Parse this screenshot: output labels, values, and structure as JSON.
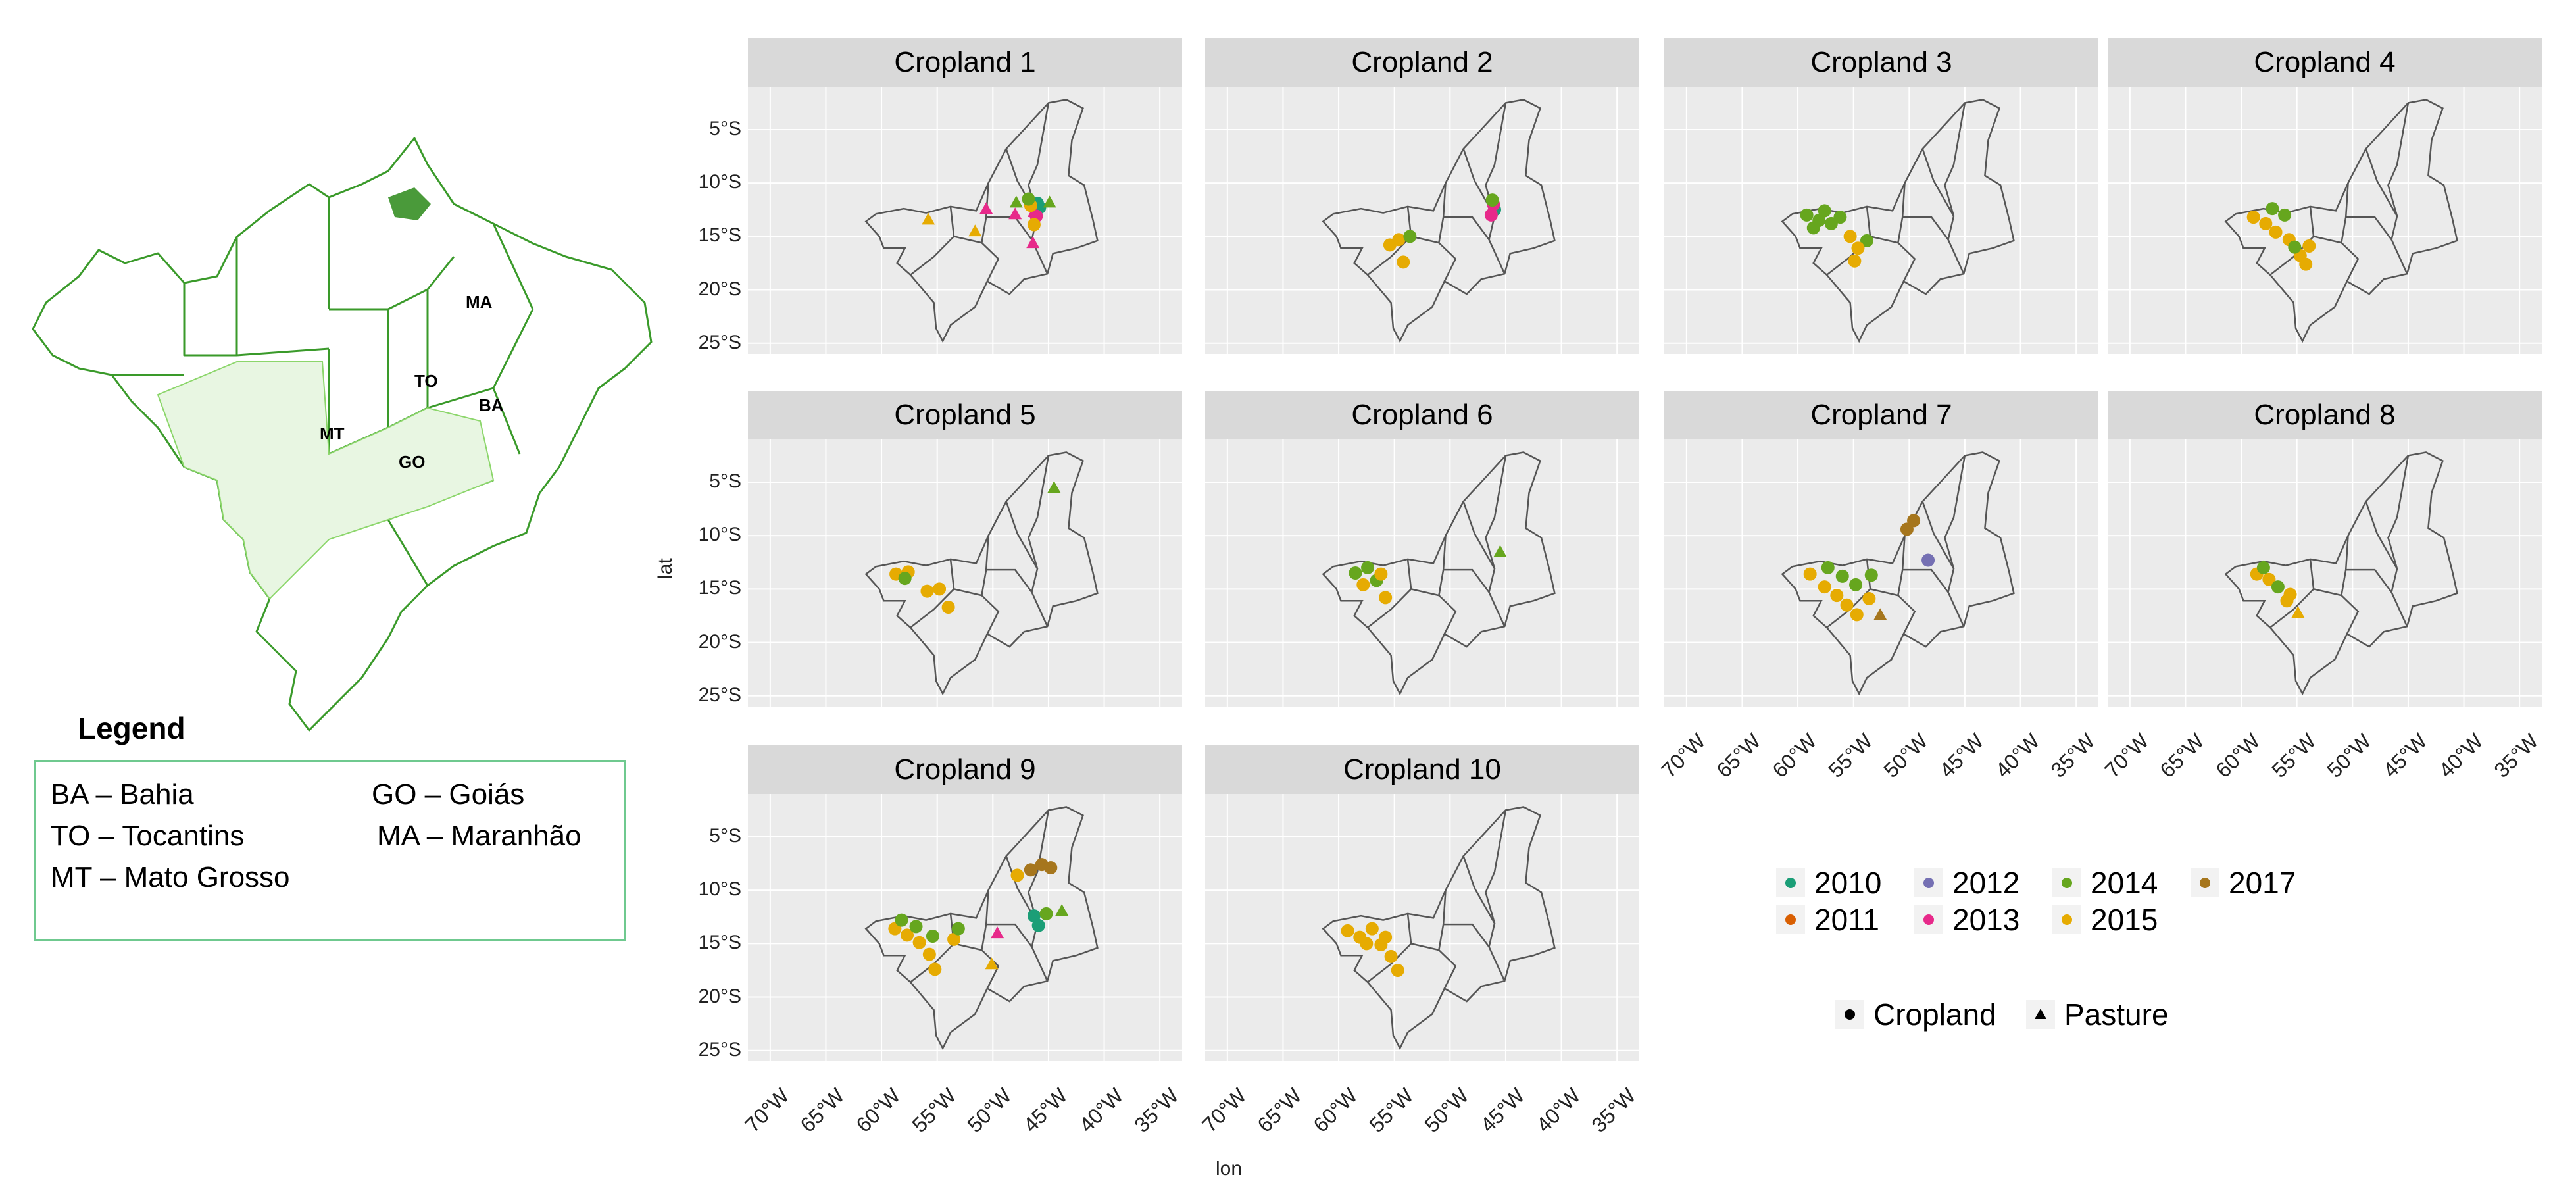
{
  "overview_map": {
    "state_labels": [
      "MA",
      "TO",
      "BA",
      "MT",
      "GO"
    ],
    "outline_color": "#3a9a2a",
    "highlight_color": "#8cd66b"
  },
  "legend": {
    "title": "Legend",
    "entries": [
      "BA – Bahia",
      "GO – Goiás",
      "TO – Tocantins",
      "MA – Maranhão",
      "MT – Mato Grosso"
    ]
  },
  "facets": {
    "titles": [
      "Cropland 1",
      "Cropland 2",
      "Cropland 3",
      "Cropland 4",
      "Cropland 5",
      "Cropland 6",
      "Cropland 7",
      "Cropland 8",
      "Cropland 9",
      "Cropland 10"
    ],
    "lat_ticks": [
      "5°S",
      "10°S",
      "15°S",
      "20°S",
      "25°S"
    ],
    "lon_ticks": [
      "70°W",
      "65°W",
      "60°W",
      "55°W",
      "50°W",
      "45°W",
      "40°W",
      "35°W"
    ],
    "xlabel": "lon",
    "ylabel": "lat"
  },
  "chart_data": {
    "type": "scatter",
    "x_field": "lon",
    "y_field": "lat",
    "xlim": [
      -72,
      -33
    ],
    "ylim": [
      -26,
      -1
    ],
    "year_colors": {
      "2010": "#1b9e77",
      "2011": "#d95f02",
      "2012": "#7570b3",
      "2013": "#e7298a",
      "2014": "#66a61e",
      "2015": "#e6ab02",
      "2017": "#a6761d"
    },
    "years": [
      "2010",
      "2012",
      "2014",
      "2017",
      "2011",
      "2013",
      "2015"
    ],
    "shapes": [
      "Cropland",
      "Pasture"
    ],
    "panels": [
      {
        "title": "Cropland 1",
        "points": [
          {
            "lon": -45.8,
            "lat": -12.3,
            "year": "2010",
            "shape": "Cropland"
          },
          {
            "lon": -46.0,
            "lat": -11.9,
            "year": "2010",
            "shape": "Cropland"
          },
          {
            "lon": -46.1,
            "lat": -13.1,
            "year": "2013",
            "shape": "Cropland"
          },
          {
            "lon": -46.3,
            "lat": -12.7,
            "year": "2013",
            "shape": "Pasture"
          },
          {
            "lon": -48.0,
            "lat": -12.9,
            "year": "2013",
            "shape": "Pasture"
          },
          {
            "lon": -50.6,
            "lat": -12.4,
            "year": "2013",
            "shape": "Pasture"
          },
          {
            "lon": -46.4,
            "lat": -15.6,
            "year": "2013",
            "shape": "Pasture"
          },
          {
            "lon": -44.9,
            "lat": -11.8,
            "year": "2014",
            "shape": "Pasture"
          },
          {
            "lon": -47.9,
            "lat": -11.8,
            "year": "2014",
            "shape": "Pasture"
          },
          {
            "lon": -55.8,
            "lat": -13.4,
            "year": "2015",
            "shape": "Pasture"
          },
          {
            "lon": -51.6,
            "lat": -14.5,
            "year": "2015",
            "shape": "Pasture"
          },
          {
            "lon": -46.6,
            "lat": -12.1,
            "year": "2015",
            "shape": "Cropland"
          },
          {
            "lon": -46.3,
            "lat": -13.9,
            "year": "2015",
            "shape": "Cropland"
          },
          {
            "lon": -46.8,
            "lat": -11.5,
            "year": "2014",
            "shape": "Cropland"
          }
        ]
      },
      {
        "title": "Cropland 2",
        "points": [
          {
            "lon": -46.0,
            "lat": -12.5,
            "year": "2010",
            "shape": "Cropland"
          },
          {
            "lon": -46.1,
            "lat": -12.0,
            "year": "2013",
            "shape": "Cropland"
          },
          {
            "lon": -46.3,
            "lat": -13.0,
            "year": "2013",
            "shape": "Cropland"
          },
          {
            "lon": -46.2,
            "lat": -11.6,
            "year": "2014",
            "shape": "Cropland"
          },
          {
            "lon": -54.6,
            "lat": -15.3,
            "year": "2015",
            "shape": "Cropland"
          },
          {
            "lon": -55.4,
            "lat": -15.8,
            "year": "2015",
            "shape": "Cropland"
          },
          {
            "lon": -54.2,
            "lat": -17.4,
            "year": "2015",
            "shape": "Cropland"
          },
          {
            "lon": -53.6,
            "lat": -15.0,
            "year": "2014",
            "shape": "Cropland"
          }
        ]
      },
      {
        "title": "Cropland 3",
        "points": [
          {
            "lon": -59.2,
            "lat": -13.0,
            "year": "2014",
            "shape": "Cropland"
          },
          {
            "lon": -58.1,
            "lat": -13.5,
            "year": "2014",
            "shape": "Cropland"
          },
          {
            "lon": -57.0,
            "lat": -13.8,
            "year": "2014",
            "shape": "Cropland"
          },
          {
            "lon": -56.2,
            "lat": -13.2,
            "year": "2014",
            "shape": "Cropland"
          },
          {
            "lon": -58.6,
            "lat": -14.2,
            "year": "2014",
            "shape": "Cropland"
          },
          {
            "lon": -53.8,
            "lat": -15.4,
            "year": "2014",
            "shape": "Cropland"
          },
          {
            "lon": -55.3,
            "lat": -15.0,
            "year": "2015",
            "shape": "Cropland"
          },
          {
            "lon": -54.6,
            "lat": -16.1,
            "year": "2015",
            "shape": "Cropland"
          },
          {
            "lon": -54.9,
            "lat": -17.3,
            "year": "2015",
            "shape": "Cropland"
          },
          {
            "lon": -57.6,
            "lat": -12.6,
            "year": "2014",
            "shape": "Cropland"
          }
        ]
      },
      {
        "title": "Cropland 4",
        "points": [
          {
            "lon": -58.9,
            "lat": -13.2,
            "year": "2015",
            "shape": "Cropland"
          },
          {
            "lon": -57.8,
            "lat": -13.8,
            "year": "2015",
            "shape": "Cropland"
          },
          {
            "lon": -56.9,
            "lat": -14.6,
            "year": "2015",
            "shape": "Cropland"
          },
          {
            "lon": -55.7,
            "lat": -15.3,
            "year": "2015",
            "shape": "Cropland"
          },
          {
            "lon": -54.7,
            "lat": -16.8,
            "year": "2015",
            "shape": "Cropland"
          },
          {
            "lon": -53.9,
            "lat": -15.9,
            "year": "2015",
            "shape": "Cropland"
          },
          {
            "lon": -57.2,
            "lat": -12.4,
            "year": "2014",
            "shape": "Cropland"
          },
          {
            "lon": -56.1,
            "lat": -13.0,
            "year": "2014",
            "shape": "Cropland"
          },
          {
            "lon": -55.2,
            "lat": -16.0,
            "year": "2014",
            "shape": "Cropland"
          },
          {
            "lon": -54.2,
            "lat": -17.6,
            "year": "2015",
            "shape": "Cropland"
          }
        ]
      },
      {
        "title": "Cropland 5",
        "points": [
          {
            "lon": -58.7,
            "lat": -13.6,
            "year": "2015",
            "shape": "Cropland"
          },
          {
            "lon": -57.6,
            "lat": -13.4,
            "year": "2015",
            "shape": "Cropland"
          },
          {
            "lon": -55.9,
            "lat": -15.2,
            "year": "2015",
            "shape": "Cropland"
          },
          {
            "lon": -54.8,
            "lat": -15.0,
            "year": "2015",
            "shape": "Cropland"
          },
          {
            "lon": -54.0,
            "lat": -16.7,
            "year": "2015",
            "shape": "Cropland"
          },
          {
            "lon": -57.9,
            "lat": -14.0,
            "year": "2014",
            "shape": "Cropland"
          },
          {
            "lon": -44.5,
            "lat": -5.5,
            "year": "2014",
            "shape": "Pasture"
          }
        ]
      },
      {
        "title": "Cropland 6",
        "points": [
          {
            "lon": -58.5,
            "lat": -13.5,
            "year": "2014",
            "shape": "Cropland"
          },
          {
            "lon": -57.4,
            "lat": -13.0,
            "year": "2014",
            "shape": "Cropland"
          },
          {
            "lon": -56.6,
            "lat": -14.2,
            "year": "2014",
            "shape": "Cropland"
          },
          {
            "lon": -57.8,
            "lat": -14.6,
            "year": "2015",
            "shape": "Cropland"
          },
          {
            "lon": -55.8,
            "lat": -15.8,
            "year": "2015",
            "shape": "Cropland"
          },
          {
            "lon": -56.2,
            "lat": -13.6,
            "year": "2015",
            "shape": "Cropland"
          },
          {
            "lon": -45.5,
            "lat": -11.5,
            "year": "2014",
            "shape": "Pasture"
          }
        ]
      },
      {
        "title": "Cropland 7",
        "points": [
          {
            "lon": -58.9,
            "lat": -13.6,
            "year": "2015",
            "shape": "Cropland"
          },
          {
            "lon": -57.6,
            "lat": -14.8,
            "year": "2015",
            "shape": "Cropland"
          },
          {
            "lon": -56.5,
            "lat": -15.6,
            "year": "2015",
            "shape": "Cropland"
          },
          {
            "lon": -55.6,
            "lat": -16.5,
            "year": "2015",
            "shape": "Cropland"
          },
          {
            "lon": -54.7,
            "lat": -17.4,
            "year": "2015",
            "shape": "Cropland"
          },
          {
            "lon": -53.6,
            "lat": -15.9,
            "year": "2015",
            "shape": "Cropland"
          },
          {
            "lon": -57.3,
            "lat": -13.0,
            "year": "2014",
            "shape": "Cropland"
          },
          {
            "lon": -56.0,
            "lat": -13.8,
            "year": "2014",
            "shape": "Cropland"
          },
          {
            "lon": -54.8,
            "lat": -14.6,
            "year": "2014",
            "shape": "Cropland"
          },
          {
            "lon": -53.4,
            "lat": -13.7,
            "year": "2014",
            "shape": "Cropland"
          },
          {
            "lon": -52.6,
            "lat": -17.4,
            "year": "2017",
            "shape": "Pasture"
          },
          {
            "lon": -49.6,
            "lat": -8.6,
            "year": "2017",
            "shape": "Cropland"
          },
          {
            "lon": -50.2,
            "lat": -9.4,
            "year": "2017",
            "shape": "Cropland"
          },
          {
            "lon": -48.3,
            "lat": -12.3,
            "year": "2012",
            "shape": "Cropland"
          }
        ]
      },
      {
        "title": "Cropland 8",
        "points": [
          {
            "lon": -58.6,
            "lat": -13.6,
            "year": "2015",
            "shape": "Cropland"
          },
          {
            "lon": -57.5,
            "lat": -14.1,
            "year": "2015",
            "shape": "Cropland"
          },
          {
            "lon": -55.6,
            "lat": -15.5,
            "year": "2015",
            "shape": "Cropland"
          },
          {
            "lon": -54.9,
            "lat": -17.2,
            "year": "2015",
            "shape": "Pasture"
          },
          {
            "lon": -58.0,
            "lat": -13.0,
            "year": "2014",
            "shape": "Cropland"
          },
          {
            "lon": -56.7,
            "lat": -14.8,
            "year": "2014",
            "shape": "Cropland"
          },
          {
            "lon": -55.9,
            "lat": -16.1,
            "year": "2015",
            "shape": "Cropland"
          }
        ]
      },
      {
        "title": "Cropland 9",
        "points": [
          {
            "lon": -58.8,
            "lat": -13.6,
            "year": "2015",
            "shape": "Cropland"
          },
          {
            "lon": -57.7,
            "lat": -14.2,
            "year": "2015",
            "shape": "Cropland"
          },
          {
            "lon": -56.6,
            "lat": -14.9,
            "year": "2015",
            "shape": "Cropland"
          },
          {
            "lon": -55.7,
            "lat": -16.0,
            "year": "2015",
            "shape": "Cropland"
          },
          {
            "lon": -55.2,
            "lat": -17.4,
            "year": "2015",
            "shape": "Cropland"
          },
          {
            "lon": -53.5,
            "lat": -14.6,
            "year": "2015",
            "shape": "Cropland"
          },
          {
            "lon": -58.2,
            "lat": -12.8,
            "year": "2014",
            "shape": "Cropland"
          },
          {
            "lon": -56.9,
            "lat": -13.4,
            "year": "2014",
            "shape": "Cropland"
          },
          {
            "lon": -55.4,
            "lat": -14.3,
            "year": "2014",
            "shape": "Cropland"
          },
          {
            "lon": -53.1,
            "lat": -13.6,
            "year": "2014",
            "shape": "Cropland"
          },
          {
            "lon": -46.3,
            "lat": -12.4,
            "year": "2010",
            "shape": "Cropland"
          },
          {
            "lon": -45.9,
            "lat": -13.3,
            "year": "2010",
            "shape": "Cropland"
          },
          {
            "lon": -45.6,
            "lat": -7.6,
            "year": "2017",
            "shape": "Cropland"
          },
          {
            "lon": -46.6,
            "lat": -8.1,
            "year": "2017",
            "shape": "Cropland"
          },
          {
            "lon": -44.8,
            "lat": -7.9,
            "year": "2017",
            "shape": "Cropland"
          },
          {
            "lon": -47.8,
            "lat": -8.6,
            "year": "2015",
            "shape": "Cropland"
          },
          {
            "lon": -49.6,
            "lat": -14.0,
            "year": "2013",
            "shape": "Pasture"
          },
          {
            "lon": -50.1,
            "lat": -16.9,
            "year": "2015",
            "shape": "Pasture"
          },
          {
            "lon": -43.8,
            "lat": -11.9,
            "year": "2014",
            "shape": "Pasture"
          },
          {
            "lon": -45.2,
            "lat": -12.2,
            "year": "2014",
            "shape": "Cropland"
          }
        ]
      },
      {
        "title": "Cropland 10",
        "points": [
          {
            "lon": -59.2,
            "lat": -13.8,
            "year": "2015",
            "shape": "Cropland"
          },
          {
            "lon": -58.1,
            "lat": -14.4,
            "year": "2015",
            "shape": "Cropland"
          },
          {
            "lon": -57.0,
            "lat": -13.6,
            "year": "2015",
            "shape": "Cropland"
          },
          {
            "lon": -56.2,
            "lat": -15.1,
            "year": "2015",
            "shape": "Cropland"
          },
          {
            "lon": -55.3,
            "lat": -16.2,
            "year": "2015",
            "shape": "Cropland"
          },
          {
            "lon": -54.7,
            "lat": -17.5,
            "year": "2015",
            "shape": "Cropland"
          },
          {
            "lon": -55.8,
            "lat": -14.4,
            "year": "2015",
            "shape": "Cropland"
          },
          {
            "lon": -57.5,
            "lat": -15.0,
            "year": "2015",
            "shape": "Cropland"
          }
        ]
      }
    ]
  }
}
